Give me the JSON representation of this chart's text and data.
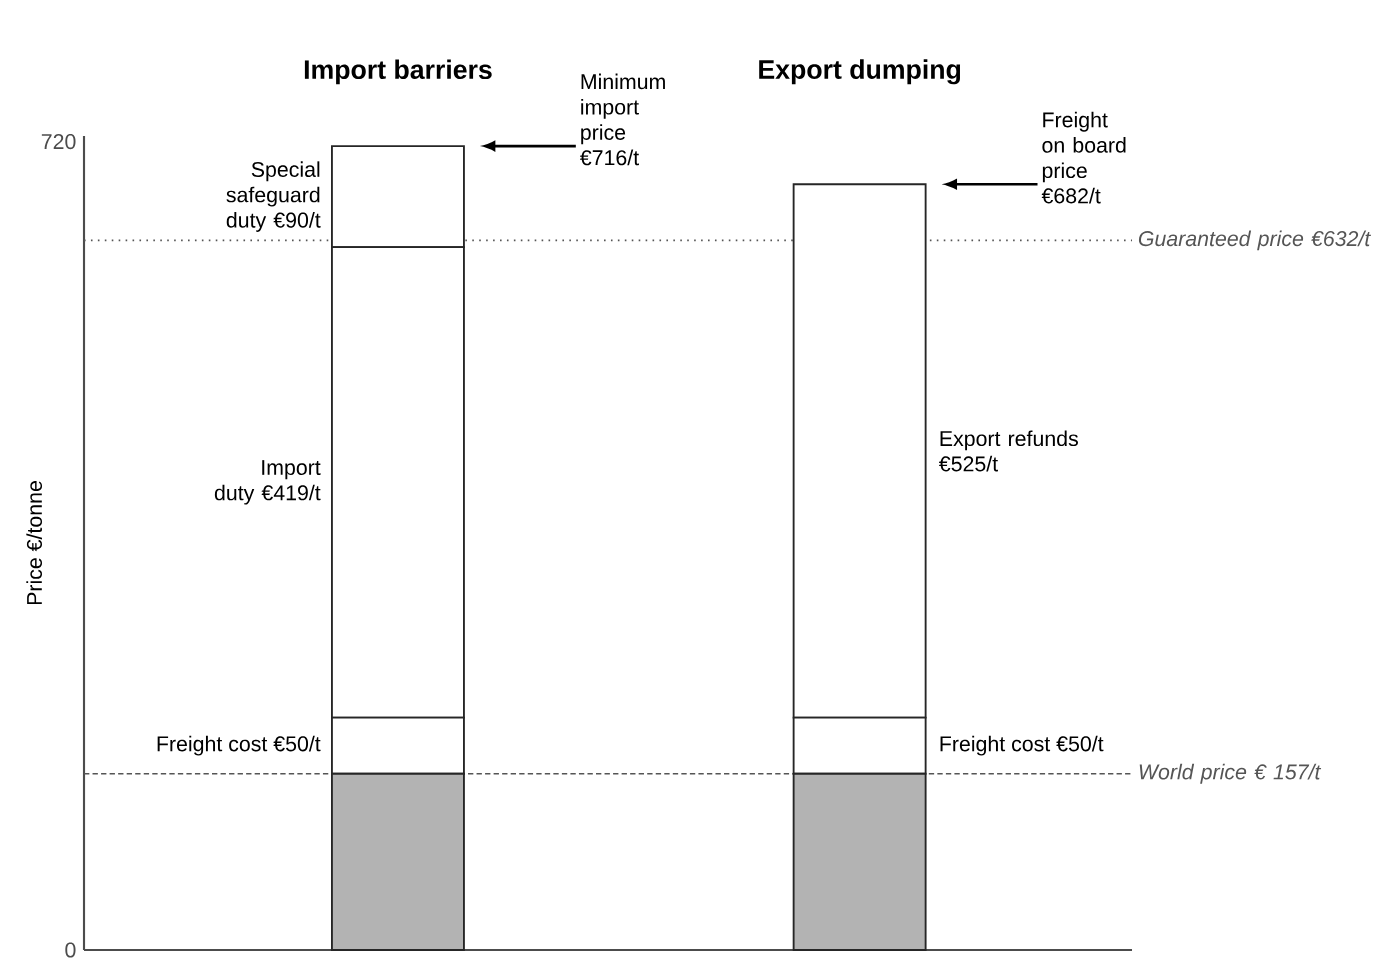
{
  "chart_data": {
    "type": "bar",
    "stacked": true,
    "categories": [
      "Import barriers",
      "Export dumping"
    ],
    "ylabel": "Price €/tonne",
    "ylim": [
      0,
      725
    ],
    "yticks": [
      0,
      720
    ],
    "series": [
      {
        "color": "#b3b3b3",
        "values": [
          157,
          157
        ]
      },
      {
        "color": "#ffffff",
        "values": [
          50,
          50
        ]
      },
      {
        "color": "#ffffff",
        "values": [
          419,
          475
        ]
      },
      {
        "color": "#ffffff",
        "values": [
          90,
          null
        ]
      }
    ],
    "ref_lines": [
      {
        "axis": "y",
        "value": 632,
        "label": "Guaranteed price €632/t",
        "line_style": "dotted",
        "color": "#555555"
      },
      {
        "axis": "y",
        "value": 157,
        "label": "World price € 157/t",
        "line_style": "dashed",
        "color": "#555555"
      }
    ],
    "annotations": [
      "Minimum import price €716/t",
      "Special safeguard duty €90/t",
      "Import duty €419/t",
      "Freight cost €50/t",
      "Freight on board price €682/t",
      "Export refunds €525/t",
      "Freight cost €50/t"
    ]
  }
}
